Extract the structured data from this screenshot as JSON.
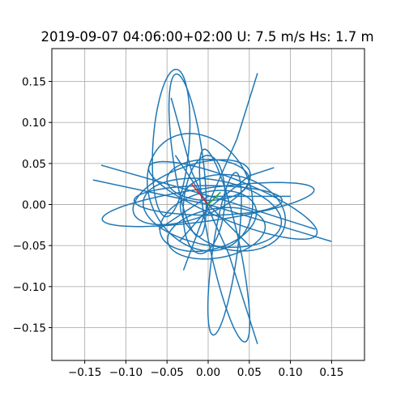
{
  "chart_data": {
    "type": "line",
    "title": "2019-09-07 04:06:00+02:00 U: 7.5 m/s Hs: 1.7 m",
    "xlabel": "",
    "ylabel": "",
    "xlim": [
      -0.19,
      0.19
    ],
    "ylim": [
      -0.19,
      0.19
    ],
    "grid": true,
    "xticks": [
      -0.15,
      -0.1,
      -0.05,
      0.0,
      0.05,
      0.1,
      0.15
    ],
    "xtick_labels": [
      "−0.15",
      "−0.10",
      "−0.05",
      "0.00",
      "0.05",
      "0.10",
      "0.15"
    ],
    "yticks": [
      -0.15,
      -0.1,
      -0.05,
      0.0,
      0.05,
      0.1,
      0.15
    ],
    "ytick_labels": [
      "−0.15",
      "−0.10",
      "−0.05",
      "0.00",
      "0.05",
      "0.10",
      "0.15"
    ],
    "series": [
      {
        "name": "trajectory",
        "color": "#1f77b4",
        "ellipses": [
          {
            "cx": -0.045,
            "cy": 0.075,
            "rx": 0.022,
            "ry": 0.09,
            "rot": -4
          },
          {
            "cx": 0.0,
            "cy": 0.0,
            "rx": 0.13,
            "ry": 0.02,
            "rot": 8
          },
          {
            "cx": 0.02,
            "cy": -0.05,
            "rx": 0.018,
            "ry": 0.12,
            "rot": 12
          },
          {
            "cx": 0.005,
            "cy": -0.01,
            "rx": 0.085,
            "ry": 0.04,
            "rot": -10
          },
          {
            "cx": 0.03,
            "cy": 0.005,
            "rx": 0.11,
            "ry": 0.025,
            "rot": -22
          },
          {
            "cx": -0.01,
            "cy": 0.015,
            "rx": 0.06,
            "ry": 0.075,
            "rot": 30
          },
          {
            "cx": 0.0,
            "cy": -0.02,
            "rx": 0.06,
            "ry": 0.035,
            "rot": 15
          },
          {
            "cx": -0.025,
            "cy": 0.06,
            "rx": 0.018,
            "ry": 0.1,
            "rot": 8
          },
          {
            "cx": 0.02,
            "cy": -0.06,
            "rx": 0.015,
            "ry": 0.1,
            "rot": -8
          },
          {
            "cx": 0.0,
            "cy": 0.005,
            "rx": 0.09,
            "ry": 0.018,
            "rot": 0
          },
          {
            "cx": -0.02,
            "cy": 0.015,
            "rx": 0.075,
            "ry": 0.032,
            "rot": 20
          },
          {
            "cx": 0.03,
            "cy": -0.01,
            "rx": 0.065,
            "ry": 0.045,
            "rot": -15
          },
          {
            "cx": 0.0,
            "cy": 0.03,
            "rx": 0.05,
            "ry": 0.025,
            "rot": 0
          },
          {
            "cx": 0.01,
            "cy": -0.035,
            "rx": 0.06,
            "ry": 0.03,
            "rot": 10
          },
          {
            "cx": -0.005,
            "cy": 0.0,
            "rx": 0.025,
            "ry": 0.06,
            "rot": -5
          }
        ],
        "strokes": [
          [
            [
              -0.13,
              0.048
            ],
            [
              0.02,
              0.005
            ],
            [
              0.13,
              -0.03
            ]
          ],
          [
            [
              -0.14,
              0.03
            ],
            [
              0.0,
              0.0
            ],
            [
              0.15,
              -0.045
            ]
          ],
          [
            [
              -0.045,
              0.13
            ],
            [
              -0.02,
              0.04
            ],
            [
              0.025,
              -0.06
            ],
            [
              0.06,
              -0.17
            ]
          ],
          [
            [
              -0.035,
              -0.045
            ],
            [
              0.0,
              -0.005
            ],
            [
              0.05,
              0.035
            ],
            [
              0.08,
              0.045
            ]
          ],
          [
            [
              0.06,
              0.16
            ],
            [
              0.035,
              0.08
            ],
            [
              0.0,
              0.0
            ],
            [
              -0.03,
              -0.08
            ]
          ],
          [
            [
              -0.06,
              -0.03
            ],
            [
              0.0,
              0.01
            ],
            [
              0.1,
              0.01
            ]
          ],
          [
            [
              -0.04,
              0.06
            ],
            [
              0.0,
              0.0
            ],
            [
              0.05,
              -0.05
            ]
          ]
        ]
      },
      {
        "name": "red-vector",
        "color": "#d62728",
        "points": [
          [
            0.0,
            0.0
          ],
          [
            -0.02,
            0.025
          ]
        ]
      },
      {
        "name": "green-vector",
        "color": "#2ca02c",
        "points": [
          [
            0.0,
            0.0
          ],
          [
            0.015,
            0.015
          ]
        ]
      }
    ]
  }
}
